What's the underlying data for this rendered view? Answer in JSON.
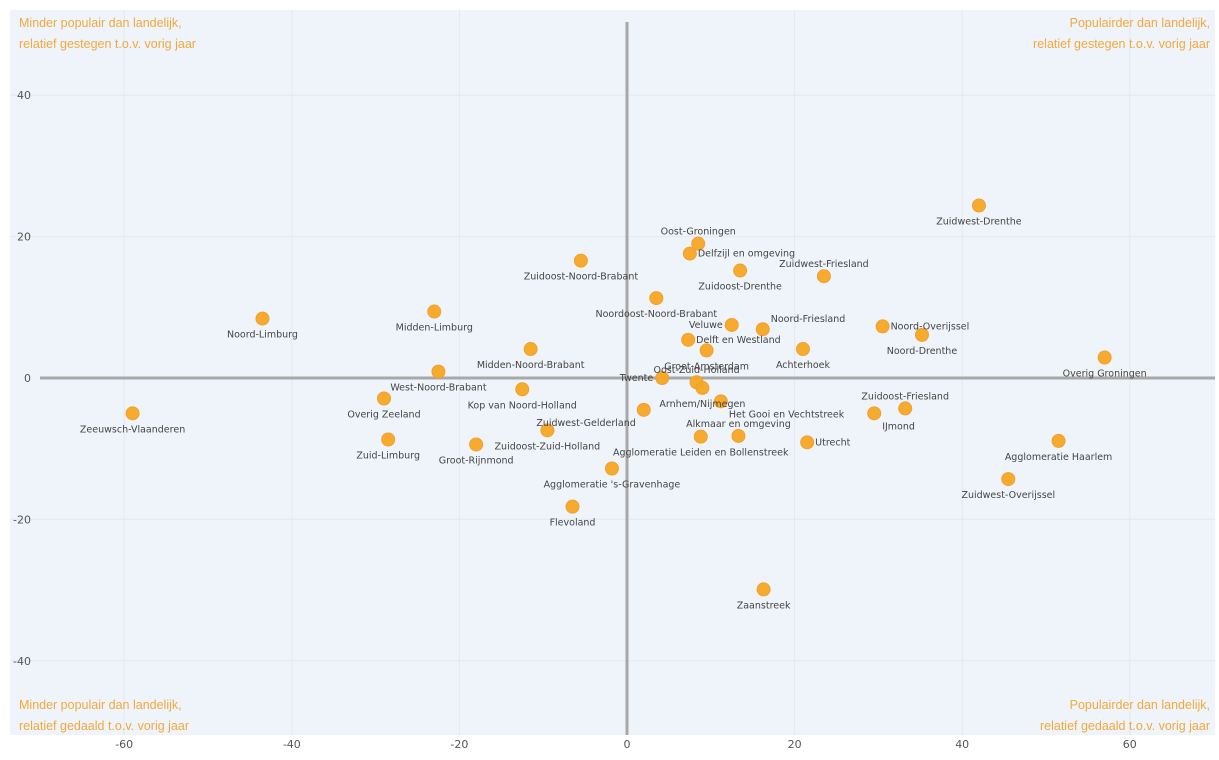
{
  "chart_data": {
    "type": "scatter",
    "title": "",
    "xlabel": "",
    "ylabel": "",
    "xlim": [
      -75,
      70
    ],
    "ylim": [
      -50,
      50
    ],
    "xticks": [
      -60,
      -40,
      -20,
      0,
      20,
      40,
      60
    ],
    "yticks": [
      -40,
      -20,
      0,
      20,
      40
    ],
    "grid": true,
    "colors": {
      "point": "#f5a623",
      "point_stroke": "#f0a030",
      "axis": "#a8a8a8",
      "grid": "#e6e8ec",
      "background": "#eff4fa",
      "quadrant_text": "#f2a93b"
    },
    "quadrant_labels": {
      "top_left": [
        "Minder populair dan landelijk,",
        "relatief gestegen t.o.v. vorig jaar"
      ],
      "top_right": [
        "Populairder dan landelijk,",
        "relatief gestegen t.o.v. vorig jaar"
      ],
      "bottom_left": [
        "Minder populair dan landelijk,",
        "relatief gedaald t.o.v. vorig jaar"
      ],
      "bottom_right": [
        "Populairder dan landelijk,",
        "relatief gedaald t.o.v. vorig jaar"
      ]
    },
    "points": [
      {
        "label": "Zuidwest-Drenthe",
        "x": 42,
        "y": 24.4,
        "pos": "below"
      },
      {
        "label": "Oost-Groningen",
        "x": 8.5,
        "y": 19,
        "pos": "above"
      },
      {
        "label": "Delfzijl en omgeving",
        "x": 7.5,
        "y": 17.6,
        "pos": "right"
      },
      {
        "label": "Zuidoost-Noord-Brabant",
        "x": -5.5,
        "y": 16.6,
        "pos": "below"
      },
      {
        "label": "Zuidoost-Drenthe",
        "x": 13.5,
        "y": 15.2,
        "pos": "below"
      },
      {
        "label": "Zuidwest-Friesland",
        "x": 23.5,
        "y": 14.4,
        "pos": "above"
      },
      {
        "label": "Noordoost-Noord-Brabant",
        "x": 3.5,
        "y": 11.3,
        "pos": "below"
      },
      {
        "label": "Noord-Limburg",
        "x": -43.5,
        "y": 8.4,
        "pos": "below"
      },
      {
        "label": "Midden-Limburg",
        "x": -23,
        "y": 9.4,
        "pos": "below"
      },
      {
        "label": "Veluwe",
        "x": 12.5,
        "y": 7.5,
        "pos": "left"
      },
      {
        "label": "Noord-Friesland",
        "x": 16.2,
        "y": 6.9,
        "pos": "aboveright"
      },
      {
        "label": "Noord-Overijssel",
        "x": 30.5,
        "y": 7.3,
        "pos": "right"
      },
      {
        "label": "Delft en Westland",
        "x": 7.3,
        "y": 5.4,
        "pos": "right"
      },
      {
        "label": "Noord-Drenthe",
        "x": 35.2,
        "y": 6.1,
        "pos": "below"
      },
      {
        "label": "Achterhoek",
        "x": 21,
        "y": 4.1,
        "pos": "below"
      },
      {
        "label": "Groot-Amsterdam",
        "x": 9.5,
        "y": 3.9,
        "pos": "below"
      },
      {
        "label": "Midden-Noord-Brabant",
        "x": -11.5,
        "y": 4.1,
        "pos": "below"
      },
      {
        "label": "Overig Groningen",
        "x": 57,
        "y": 2.9,
        "pos": "below"
      },
      {
        "label": "West-Noord-Brabant",
        "x": -22.5,
        "y": 0.9,
        "pos": "below"
      },
      {
        "label": "Twente",
        "x": 4.2,
        "y": 0,
        "pos": "left"
      },
      {
        "label": "Oost-Zuid-Holland",
        "x": 8.3,
        "y": -0.6,
        "pos": "above"
      },
      {
        "label": "Arnhem/Nijmegen",
        "x": 9,
        "y": -1.4,
        "pos": "below"
      },
      {
        "label": "Kop van Noord-Holland",
        "x": -12.5,
        "y": -1.6,
        "pos": "below"
      },
      {
        "label": "Overig Zeeland",
        "x": -29,
        "y": -2.9,
        "pos": "below"
      },
      {
        "label": "Het Gooi en Vechtstreek",
        "x": 11.2,
        "y": -3.3,
        "pos": "belowright"
      },
      {
        "label": "Zuidoost-Friesland",
        "x": 33.2,
        "y": -4.3,
        "pos": "above"
      },
      {
        "label": "Zuidwest-Gelderland",
        "x": 2,
        "y": -4.5,
        "pos": "belowleft"
      },
      {
        "label": "IJmond",
        "x": 29.5,
        "y": -5,
        "pos": "belowright"
      },
      {
        "label": "Zeeuwsch-Vlaanderen",
        "x": -59,
        "y": -5,
        "pos": "below"
      },
      {
        "label": "Alkmaar en omgeving",
        "x": 13.3,
        "y": -8.2,
        "pos": "above"
      },
      {
        "label": "Zuidoost-Zuid-Holland",
        "x": -9.5,
        "y": -7.4,
        "pos": "below"
      },
      {
        "label": "Zuid-Limburg",
        "x": -28.5,
        "y": -8.7,
        "pos": "below"
      },
      {
        "label": "Agglomeratie Leiden en Bollenstreek",
        "x": 8.8,
        "y": -8.3,
        "pos": "below"
      },
      {
        "label": "Utrecht",
        "x": 21.5,
        "y": -9.1,
        "pos": "right"
      },
      {
        "label": "Groot-Rijnmond",
        "x": -18,
        "y": -9.4,
        "pos": "below"
      },
      {
        "label": "Agglomeratie Haarlem",
        "x": 51.5,
        "y": -8.9,
        "pos": "below"
      },
      {
        "label": "Agglomeratie 's-Gravenhage",
        "x": -1.8,
        "y": -12.8,
        "pos": "below"
      },
      {
        "label": "Zuidwest-Overijssel",
        "x": 45.5,
        "y": -14.3,
        "pos": "below"
      },
      {
        "label": "Flevoland",
        "x": -6.5,
        "y": -18.2,
        "pos": "below"
      },
      {
        "label": "Zaanstreek",
        "x": 16.3,
        "y": -29.9,
        "pos": "below"
      }
    ]
  }
}
